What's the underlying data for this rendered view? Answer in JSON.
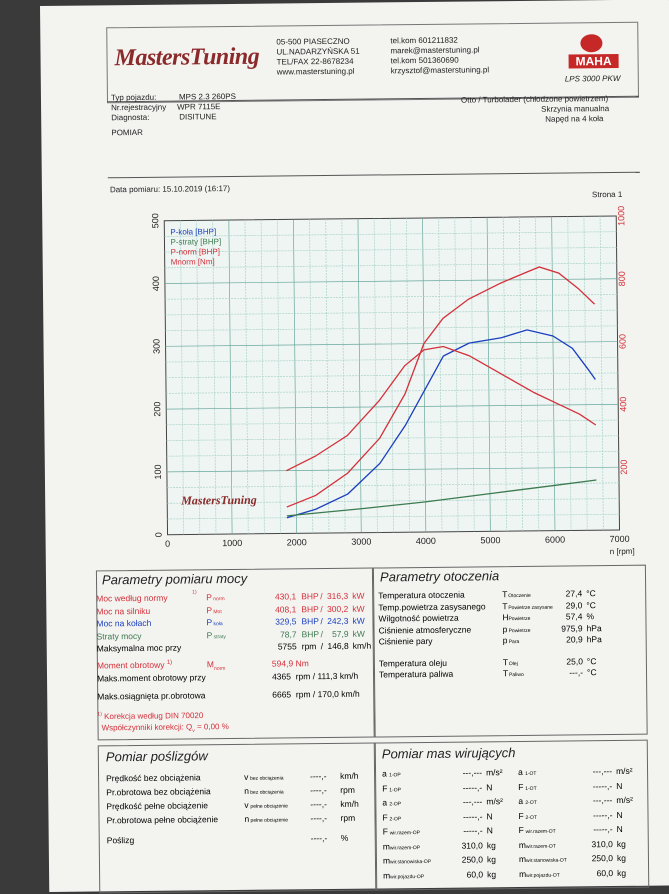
{
  "header": {
    "logo_text": "MastersTuning",
    "addr1": "05-500 PIASECZNO",
    "addr2": "UL.NADARZYŃSKA 51",
    "addr3": "TEL/FAX 22-8678234",
    "addr4": "www.masterstuning.pl",
    "contact1": "tel.kom 601211832",
    "contact2": "marek@masterstuning.pl",
    "contact3": "tel.kom 501360690",
    "contact4": "krzysztof@masterstuning.pl",
    "brand": "MAHA",
    "brand_model": "LPS 3000 PKW"
  },
  "vehicle": {
    "type_label": "Typ pojazdu:",
    "type_value": "MPS 2.3 260PS",
    "reg_label": "Nr.rejestracyjny",
    "reg_value": "WPR 7115E",
    "diag_label": "Diagnosta:",
    "diag_value": "DISITUNE",
    "engine": "Otto / Turbolader (chłodzone powietrzem)",
    "gearbox": "Skrzynia manualna",
    "drive": "Napęd na 4 koła",
    "measurement": "POMIAR"
  },
  "date_line": {
    "label": "Data pomiaru: 15.10.2019 (16:17)",
    "page": "Strona 1"
  },
  "chart_data": {
    "type": "line",
    "x_label": "n [rpm]",
    "xlim": [
      0,
      7000
    ],
    "x_ticks": [
      0,
      1000,
      2000,
      3000,
      4000,
      5000,
      6000,
      7000
    ],
    "ylim_left": [
      0,
      500
    ],
    "y_ticks_left": [
      0,
      100,
      200,
      300,
      400,
      500
    ],
    "ylim_right": [
      0,
      1000
    ],
    "y_ticks_right": [
      200,
      400,
      600,
      800,
      1000
    ],
    "grid": true,
    "legend": [
      "P-koła [BHP]",
      "P-straty [BHP]",
      "P-norm [BHP]",
      "Mnorm [Nm]"
    ],
    "series": [
      {
        "name": "P-koła [BHP]",
        "color": "#1a3fbf",
        "axis": "left",
        "x": [
          1850,
          2300,
          2800,
          3300,
          3700,
          4000,
          4300,
          4700,
          5200,
          5600,
          6000,
          6300,
          6550,
          6650
        ],
        "y": [
          25,
          38,
          62,
          110,
          170,
          225,
          280,
          300,
          308,
          320,
          310,
          290,
          255,
          240
        ]
      },
      {
        "name": "P-straty [BHP]",
        "color": "#3c7a50",
        "axis": "left",
        "x": [
          1850,
          3000,
          4000,
          5000,
          6000,
          6650
        ],
        "y": [
          28,
          38,
          48,
          60,
          72,
          80
        ]
      },
      {
        "name": "P-norm [BHP]",
        "color": "#d4303a",
        "axis": "left",
        "x": [
          1850,
          2300,
          2800,
          3300,
          3700,
          4000,
          4300,
          4700,
          5200,
          5600,
          5800,
          6100,
          6400,
          6650
        ],
        "y": [
          42,
          60,
          95,
          150,
          220,
          300,
          340,
          370,
          395,
          412,
          420,
          410,
          385,
          360
        ]
      },
      {
        "name": "Mnorm [Nm]",
        "color": "#d4303a",
        "axis": "right",
        "x": [
          1850,
          2300,
          2800,
          3300,
          3700,
          4000,
          4300,
          4700,
          5200,
          5700,
          6100,
          6400,
          6650
        ],
        "y": [
          200,
          245,
          310,
          420,
          530,
          580,
          590,
          560,
          500,
          440,
          400,
          370,
          335
        ]
      }
    ]
  },
  "power": {
    "title": "Parametry pomiaru mocy",
    "rows": [
      {
        "label": "Moc według normy",
        "sup": "1)",
        "sym": "P",
        "sub": "norm",
        "v1": "430,1",
        "u1": "BHP",
        "v2": "316,3",
        "u2": "kW",
        "cls": "lbl-red"
      },
      {
        "label": "Moc na silniku",
        "sup": "",
        "sym": "P",
        "sub": "Mot",
        "v1": "408,1",
        "u1": "BHP",
        "v2": "300,2",
        "u2": "kW",
        "cls": "lbl-red"
      },
      {
        "label": "Moc na kołach",
        "sup": "",
        "sym": "P",
        "sub": "koła",
        "v1": "329,5",
        "u1": "BHP",
        "v2": "242,3",
        "u2": "kW",
        "cls": "lbl-blue"
      },
      {
        "label": "Straty mocy",
        "sup": "",
        "sym": "P",
        "sub": "straty",
        "v1": "78,7",
        "u1": "BHP",
        "v2": "57,9",
        "u2": "kW",
        "cls": "lbl-green"
      },
      {
        "label": "Maksymalna moc przy",
        "sup": "",
        "sym": "",
        "sub": "",
        "v1": "5755",
        "u1": "rpm",
        "v2": "146,8",
        "u2": "km/h",
        "cls": ""
      }
    ],
    "torque_label": "Moment obrotowy",
    "torque_sup": "1)",
    "torque_sym": "M",
    "torque_sub": "norm",
    "torque_val": "594,9",
    "torque_unit": "Nm",
    "torque_max_label": "Maks.moment obrotowy przy",
    "torque_max_rpm": "4365",
    "torque_max_rpm_unit": "rpm",
    "torque_max_speed": "111,3",
    "torque_max_speed_unit": "km/h",
    "max_rpm_label": "Maks.osiągnięta pr.obrotowa",
    "max_rpm": "6665",
    "max_rpm_unit": "rpm",
    "max_speed": "170,0",
    "max_speed_unit": "km/h",
    "corr_label": "Korekcja według DIN 70020",
    "corr_sup": "1)",
    "corr_factor_label": "Współczynniki korekcji: Q",
    "corr_factor_sub": "v",
    "corr_factor_value": "=    0,00 %"
  },
  "env": {
    "title": "Parametry otoczenia",
    "rows": [
      {
        "label": "Temperatura otoczenia",
        "sym": "T",
        "sub": "Otoczenie",
        "val": "27,4",
        "unit": "°C"
      },
      {
        "label": "Temp.powietrza zasysanego",
        "sym": "T",
        "sub": "Powietrze zasysane",
        "val": "29,0",
        "unit": "°C"
      },
      {
        "label": "Wilgotność powietrza",
        "sym": "H",
        "sub": "Powietrze",
        "val": "57,4",
        "unit": "%"
      },
      {
        "label": "Ciśnienie atmosferyczne",
        "sym": "p",
        "sub": "Powietrze",
        "val": "975,9",
        "unit": "hPa"
      },
      {
        "label": "Ciśnienie pary",
        "sym": "p",
        "sub": "Para",
        "val": "20,9",
        "unit": "hPa"
      },
      {
        "label": "Temperatura oleju",
        "sym": "T",
        "sub": "Olej",
        "val": "25,0",
        "unit": "°C"
      },
      {
        "label": "Temperatura paliwa",
        "sym": "T",
        "sub": "Paliwo",
        "val": "---,-",
        "unit": "°C"
      }
    ]
  },
  "slip": {
    "title": "Pomiar poślizgów",
    "rows": [
      {
        "label": "Prędkość bez obciążenia",
        "sym": "v",
        "sub": "bez obciążenia",
        "val": "----,-",
        "unit": "km/h"
      },
      {
        "label": "Pr.obrotowa bez obciążenia",
        "sym": "n",
        "sub": "bez obciążenia",
        "val": "----,-",
        "unit": "rpm"
      },
      {
        "label": "Prędkość pełne obciążenie",
        "sym": "v",
        "sub": "pełne obciążenie",
        "val": "----,-",
        "unit": "km/h"
      },
      {
        "label": "Pr.obrotowa pełne obciążenie",
        "sym": "n",
        "sub": "pełne obciążenie",
        "val": "----,-",
        "unit": "rpm"
      },
      {
        "label": "Poślizg",
        "sym": "",
        "sub": "",
        "val": "----,-",
        "unit": "%"
      }
    ]
  },
  "mass": {
    "title": "Pomiar mas wirujących",
    "rows": [
      {
        "s1": "a",
        "b1": "1-OP",
        "v1": "---,---",
        "u1": "m/s²",
        "s2": "a",
        "b2": "1-OT",
        "v2": "---,---",
        "u2": "m/s²"
      },
      {
        "s1": "F",
        "b1": "1-OP",
        "v1": "-----,-",
        "u1": "N",
        "s2": "F",
        "b2": "1-OT",
        "v2": "-----,-",
        "u2": "N"
      },
      {
        "s1": "a",
        "b1": "2-OP",
        "v1": "---,---",
        "u1": "m/s²",
        "s2": "a",
        "b2": "2-OT",
        "v2": "---,---",
        "u2": "m/s²"
      },
      {
        "s1": "F",
        "b1": "2-OP",
        "v1": "-----,-",
        "u1": "N",
        "s2": "F",
        "b2": "2-OT",
        "v2": "-----,-",
        "u2": "N"
      },
      {
        "s1": "F",
        "b1": "wir.razem-OP",
        "v1": "-----,-",
        "u1": "N",
        "s2": "F",
        "b2": "wir.razem-OT",
        "v2": "-----,-",
        "u2": "N"
      },
      {
        "s1": "m",
        "b1": "wir.razem-OP",
        "v1": "310,0",
        "u1": "kg",
        "s2": "m",
        "b2": "wir.razem-OT",
        "v2": "310,0",
        "u2": "kg"
      },
      {
        "s1": "m",
        "b1": "wir.stanowiska-OP",
        "v1": "250,0",
        "u1": "kg",
        "s2": "m",
        "b2": "wir.stanowiska-OT",
        "v2": "250,0",
        "u2": "kg"
      },
      {
        "s1": "m",
        "b1": "wir.pojazdu-OP",
        "v1": "60,0",
        "u1": "kg",
        "s2": "m",
        "b2": "wir.pojazdu-OT",
        "v2": "60,0",
        "u2": "kg"
      }
    ]
  }
}
